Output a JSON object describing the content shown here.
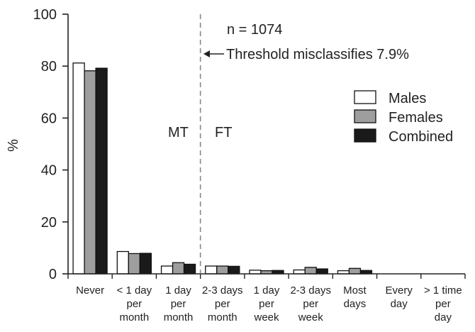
{
  "chart_data": {
    "type": "bar",
    "ylabel": "%",
    "ylim": [
      0,
      100
    ],
    "yticks": [
      0,
      20,
      40,
      60,
      80,
      100
    ],
    "categories": [
      [
        "Never"
      ],
      [
        "< 1 day",
        "per",
        "month"
      ],
      [
        "1 day",
        "per",
        "month"
      ],
      [
        "2-3 days",
        "per",
        "month"
      ],
      [
        "1 day",
        "per",
        "week"
      ],
      [
        "2-3 days",
        "per",
        "week"
      ],
      [
        "Most",
        "days"
      ],
      [
        "Every",
        "day"
      ],
      [
        "> 1 time",
        "per",
        "day"
      ]
    ],
    "series": [
      {
        "name": "Males",
        "color": "#ffffff",
        "values": [
          81.2,
          8.6,
          3.0,
          3.0,
          1.4,
          1.5,
          1.2,
          0,
          0
        ]
      },
      {
        "name": "Females",
        "color": "#9e9e9e",
        "values": [
          78.2,
          7.8,
          4.3,
          3.0,
          1.2,
          2.5,
          2.1,
          0,
          0
        ]
      },
      {
        "name": "Combined",
        "color": "#1a1a1a",
        "values": [
          79.2,
          7.9,
          3.7,
          2.9,
          1.3,
          1.9,
          1.3,
          0,
          0
        ]
      }
    ],
    "legend": "right",
    "grid": false,
    "annotations": {
      "n_label": "n = 1074",
      "threshold_label": "Threshold misclassifies 7.9%",
      "left_region": "MT",
      "right_region": "FT"
    },
    "threshold_after_category": 2
  }
}
